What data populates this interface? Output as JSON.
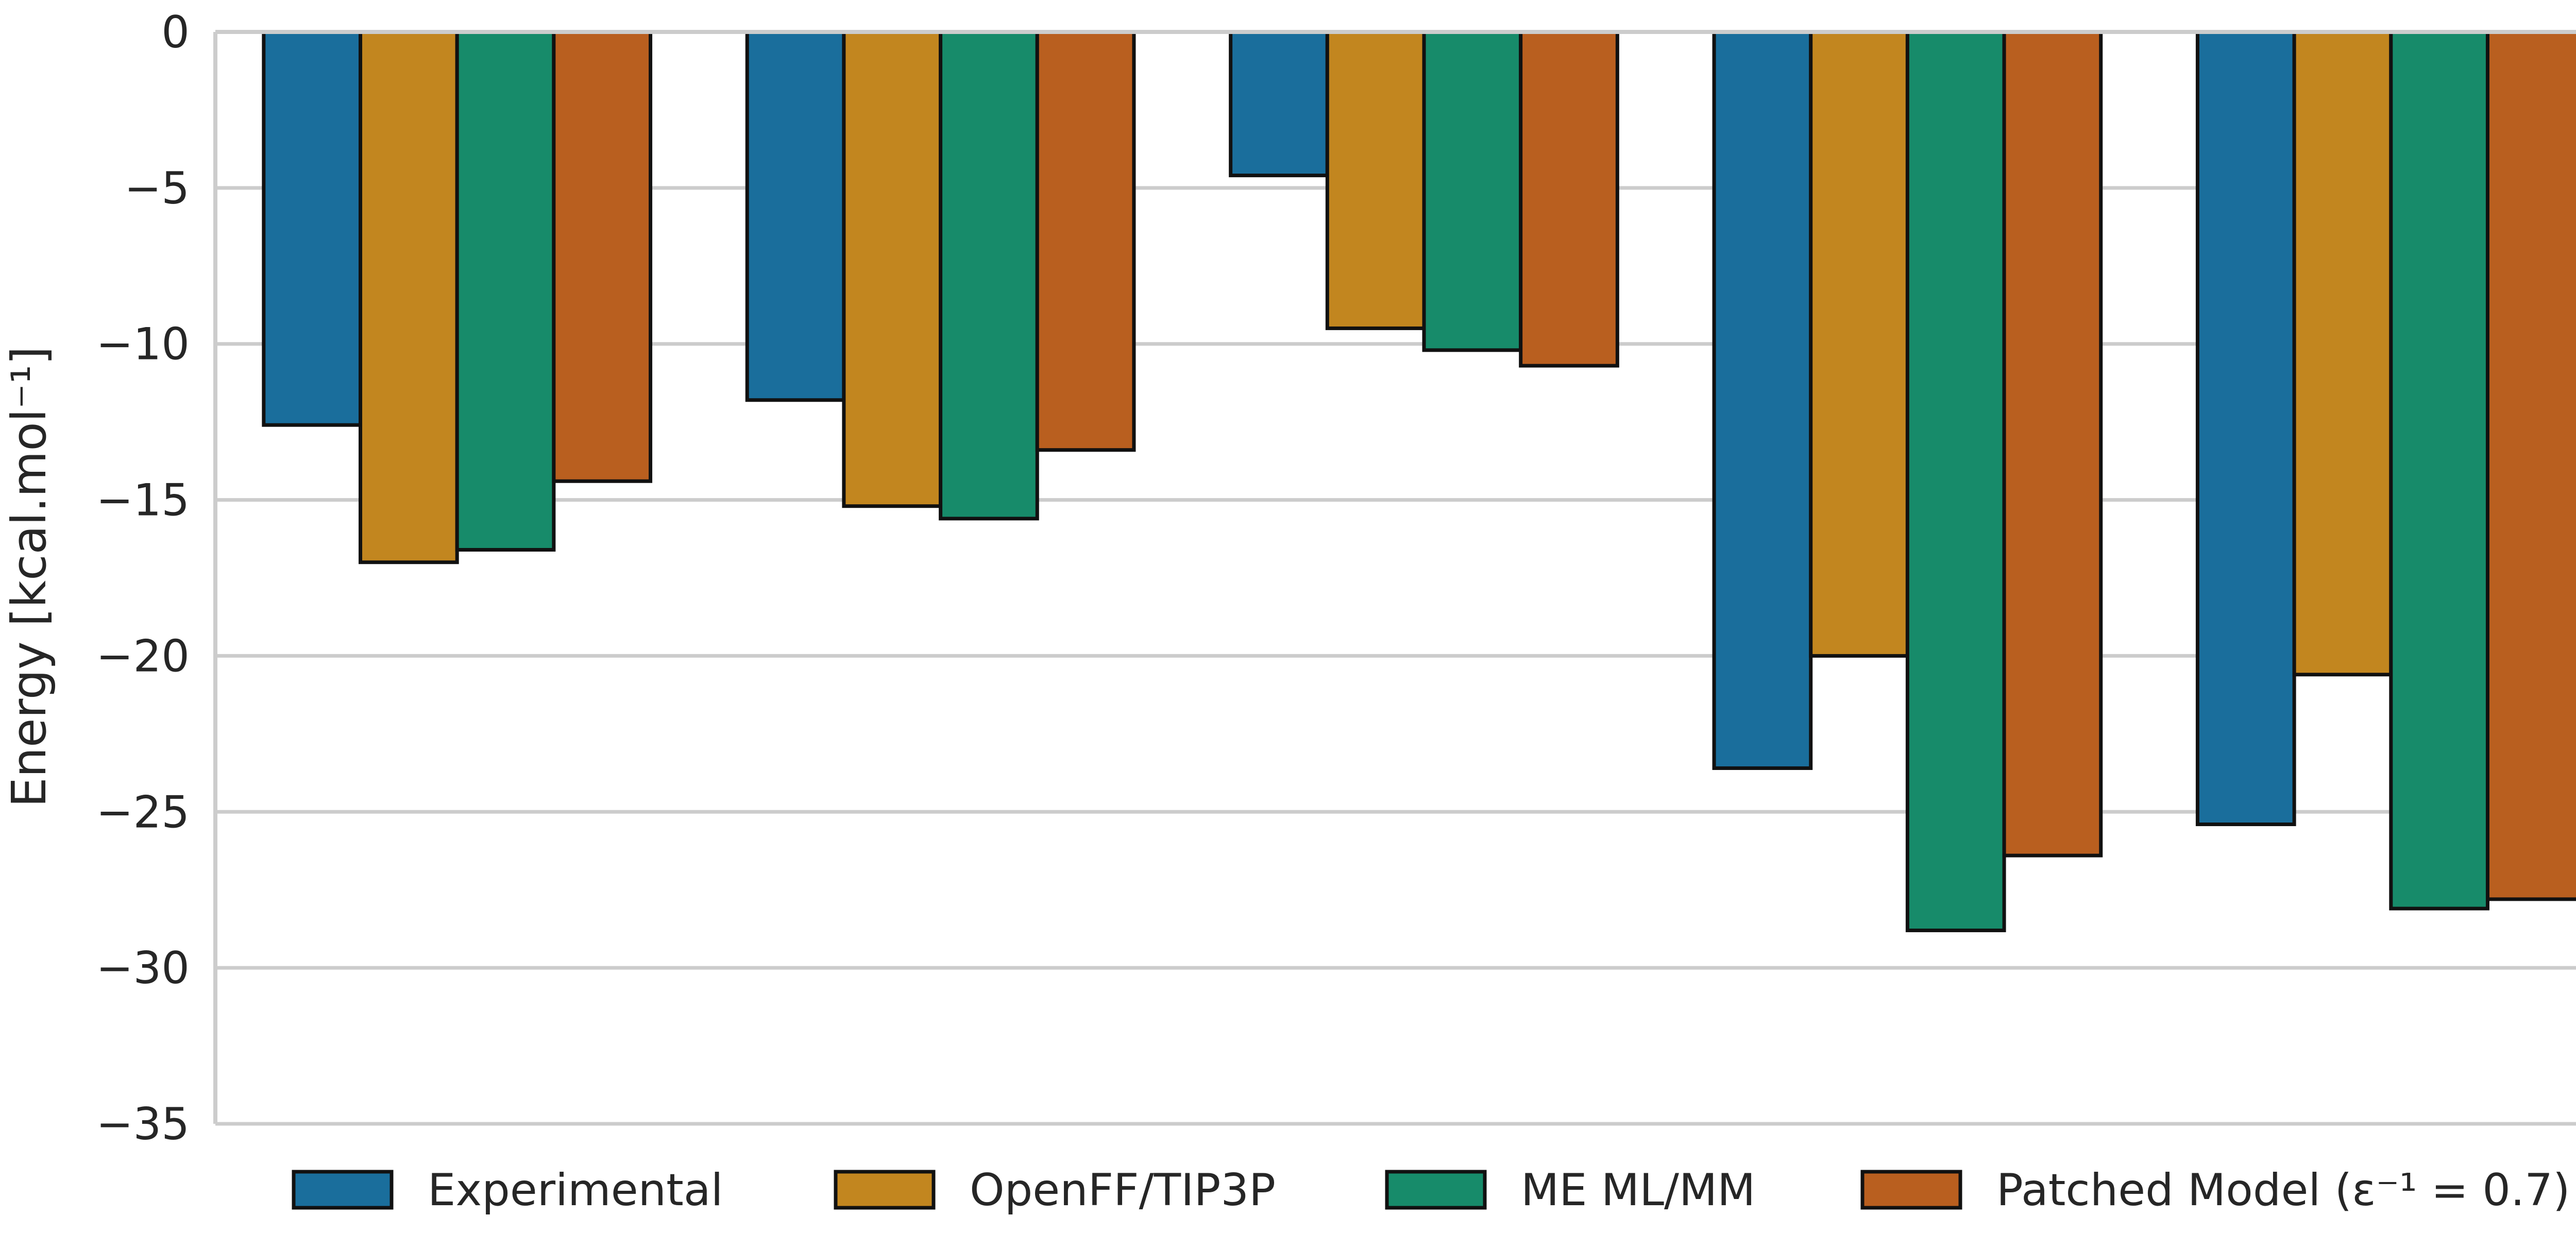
{
  "chart_data": {
    "type": "bar",
    "title": "",
    "xlabel": "",
    "ylabel": "Energy [kcal.mol⁻¹]",
    "ylim": [
      -35,
      0
    ],
    "yticks": [
      0,
      -5,
      -10,
      -15,
      -20,
      -25,
      -30,
      -35
    ],
    "ytick_labels": [
      "0",
      "−5",
      "−10",
      "−15",
      "−20",
      "−25",
      "−30",
      "−35"
    ],
    "grid": "horizontal",
    "legend_position": "bottom",
    "categories": [
      "",
      "",
      "",
      "",
      ""
    ],
    "series": [
      {
        "name": "Experimental",
        "color": "#1a6e9c",
        "values": [
          -12.6,
          -11.8,
          -4.6,
          -23.6,
          -25.4
        ]
      },
      {
        "name": "OpenFF/TIP3P",
        "color": "#c2861f",
        "values": [
          -17.0,
          -15.2,
          -9.5,
          -20.0,
          -20.6
        ]
      },
      {
        "name": "ME ML/MM",
        "color": "#178b6a",
        "values": [
          -16.6,
          -15.6,
          -10.2,
          -28.8,
          -28.1
        ]
      },
      {
        "name": "Patched Model (ε⁻¹ = 0.7)",
        "color": "#b95f1f",
        "values": [
          -14.4,
          -13.4,
          -10.7,
          -26.4,
          -27.8
        ]
      }
    ]
  }
}
